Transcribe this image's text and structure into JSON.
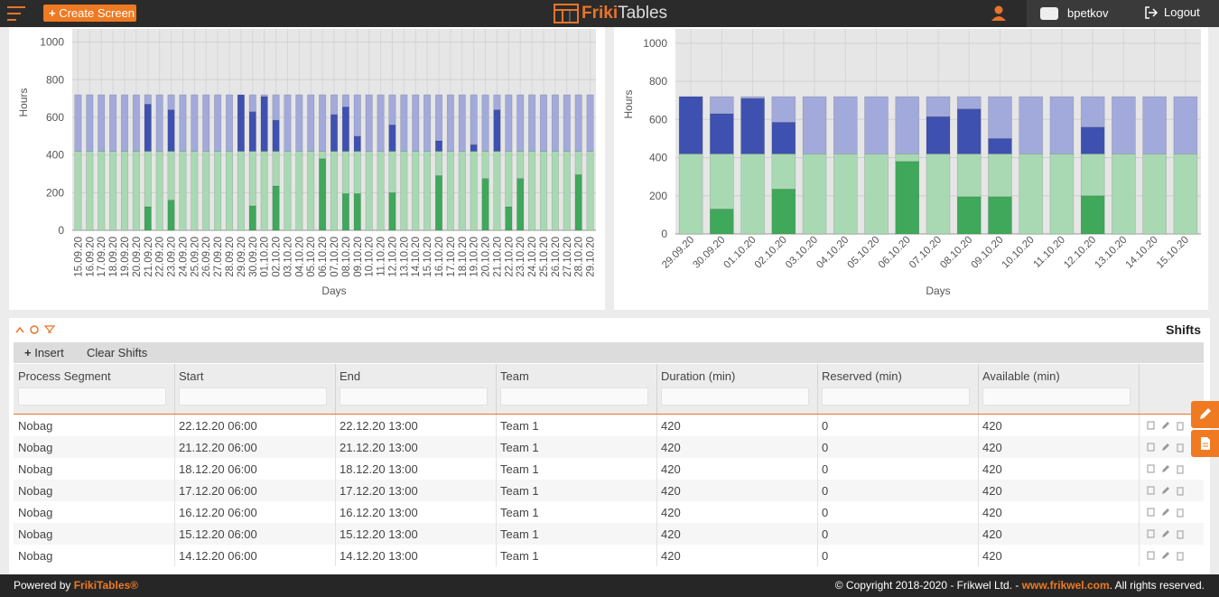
{
  "header": {
    "create_button": "Create Screen",
    "logo_first": "Friki",
    "logo_second": "Tables",
    "user": "bpetkov",
    "logout": "Logout"
  },
  "chart_data": [
    {
      "type": "bar",
      "stacked": true,
      "y_label": "Hours",
      "x_label": "Days",
      "grid": true,
      "ylim": [
        0,
        1070
      ],
      "yticks": [
        0,
        200,
        400,
        600,
        800,
        1000
      ],
      "categories": [
        "15.09.20",
        "16.09.20",
        "17.09.20",
        "18.09.20",
        "19.09.20",
        "20.09.20",
        "21.09.20",
        "22.09.20",
        "23.09.20",
        "24.09.20",
        "25.09.20",
        "26.09.20",
        "27.09.20",
        "28.09.20",
        "29.09.20",
        "30.09.20",
        "01.10.20",
        "02.10.20",
        "03.10.20",
        "04.10.20",
        "05.10.20",
        "06.10.20",
        "07.10.20",
        "08.10.20",
        "09.10.20",
        "10.10.20",
        "11.10.20",
        "12.10.20",
        "13.10.20",
        "14.10.20",
        "15.10.20",
        "16.10.20",
        "17.10.20",
        "18.10.20",
        "19.10.20",
        "20.10.20",
        "21.10.20",
        "22.10.20",
        "23.10.20",
        "24.10.20",
        "25.10.20",
        "26.10.20",
        "27.10.20",
        "28.10.20",
        "29.10.20"
      ],
      "series": [
        {
          "color": "#3fa85a",
          "values": [
            0,
            0,
            0,
            0,
            0,
            0,
            125,
            0,
            160,
            0,
            0,
            0,
            0,
            0,
            0,
            130,
            0,
            235,
            0,
            0,
            0,
            380,
            0,
            195,
            195,
            0,
            0,
            200,
            0,
            0,
            0,
            290,
            0,
            0,
            0,
            275,
            0,
            125,
            275,
            0,
            0,
            0,
            0,
            295,
            0
          ]
        },
        {
          "color": "#a9d9b3",
          "values": [
            420,
            420,
            420,
            420,
            420,
            420,
            295,
            420,
            260,
            420,
            420,
            420,
            420,
            420,
            420,
            290,
            420,
            185,
            420,
            420,
            420,
            40,
            420,
            225,
            225,
            420,
            420,
            220,
            420,
            420,
            420,
            130,
            420,
            420,
            420,
            145,
            420,
            295,
            145,
            420,
            420,
            420,
            420,
            125,
            420
          ]
        },
        {
          "color": "#3f51b0",
          "values": [
            0,
            0,
            0,
            0,
            0,
            0,
            250,
            0,
            220,
            0,
            0,
            0,
            0,
            0,
            300,
            210,
            290,
            165,
            0,
            0,
            0,
            0,
            195,
            235,
            80,
            0,
            0,
            140,
            0,
            0,
            0,
            55,
            0,
            0,
            35,
            0,
            220,
            0,
            0,
            0,
            0,
            0,
            0,
            0,
            0
          ]
        },
        {
          "color": "#a2aadb",
          "values": [
            300,
            300,
            300,
            300,
            300,
            300,
            50,
            300,
            80,
            300,
            300,
            300,
            300,
            300,
            0,
            90,
            10,
            135,
            300,
            300,
            300,
            300,
            105,
            65,
            220,
            300,
            300,
            160,
            300,
            300,
            300,
            245,
            300,
            300,
            265,
            300,
            80,
            300,
            300,
            300,
            300,
            300,
            300,
            300,
            300
          ]
        }
      ]
    },
    {
      "type": "bar",
      "stacked": true,
      "y_label": "Hours",
      "x_label": "Days",
      "grid": true,
      "ylim": [
        0,
        1075
      ],
      "yticks": [
        0,
        200,
        400,
        600,
        800,
        1000
      ],
      "categories": [
        "29.09.20",
        "30.09.20",
        "01.10.20",
        "02.10.20",
        "03.10.20",
        "04.10.20",
        "05.10.20",
        "06.10.20",
        "07.10.20",
        "08.10.20",
        "09.10.20",
        "10.10.20",
        "11.10.20",
        "12.10.20",
        "13.10.20",
        "14.10.20",
        "15.10.20"
      ],
      "series": [
        {
          "color": "#3fa85a",
          "values": [
            0,
            130,
            0,
            235,
            0,
            0,
            0,
            380,
            0,
            195,
            195,
            0,
            0,
            200,
            0,
            0,
            0
          ]
        },
        {
          "color": "#a9d9b3",
          "values": [
            420,
            290,
            420,
            185,
            420,
            420,
            420,
            40,
            420,
            225,
            225,
            420,
            420,
            220,
            420,
            420,
            420
          ]
        },
        {
          "color": "#3f51b0",
          "values": [
            300,
            210,
            290,
            165,
            0,
            0,
            0,
            0,
            195,
            235,
            80,
            0,
            0,
            140,
            0,
            0,
            0
          ]
        },
        {
          "color": "#a2aadb",
          "values": [
            0,
            90,
            10,
            135,
            300,
            300,
            300,
            300,
            105,
            65,
            220,
            300,
            300,
            160,
            300,
            300,
            300
          ]
        }
      ]
    }
  ],
  "panel": {
    "title": "Shifts",
    "insert": "Insert",
    "clear": "Clear Shifts"
  },
  "table": {
    "columns": [
      "Process Segment",
      "Start",
      "End",
      "Team",
      "Duration (min)",
      "Reserved (min)",
      "Available (min)"
    ],
    "rows": [
      [
        "Nobag",
        "22.12.20 06:00",
        "22.12.20 13:00",
        "Team 1",
        "420",
        "0",
        "420"
      ],
      [
        "Nobag",
        "21.12.20 06:00",
        "21.12.20 13:00",
        "Team 1",
        "420",
        "0",
        "420"
      ],
      [
        "Nobag",
        "18.12.20 06:00",
        "18.12.20 13:00",
        "Team 1",
        "420",
        "0",
        "420"
      ],
      [
        "Nobag",
        "17.12.20 06:00",
        "17.12.20 13:00",
        "Team 1",
        "420",
        "0",
        "420"
      ],
      [
        "Nobag",
        "16.12.20 06:00",
        "16.12.20 13:00",
        "Team 1",
        "420",
        "0",
        "420"
      ],
      [
        "Nobag",
        "15.12.20 06:00",
        "15.12.20 13:00",
        "Team 1",
        "420",
        "0",
        "420"
      ],
      [
        "Nobag",
        "14.12.20 06:00",
        "14.12.20 13:00",
        "Team 1",
        "420",
        "0",
        "420"
      ]
    ]
  },
  "footer": {
    "powered": "Powered by",
    "brand": "FrikiTables®",
    "copyright": "© Copyright 2018-2020 - Frikwel Ltd. -",
    "link": "www.frikwel.com",
    "rights": ". All rights reserved."
  }
}
